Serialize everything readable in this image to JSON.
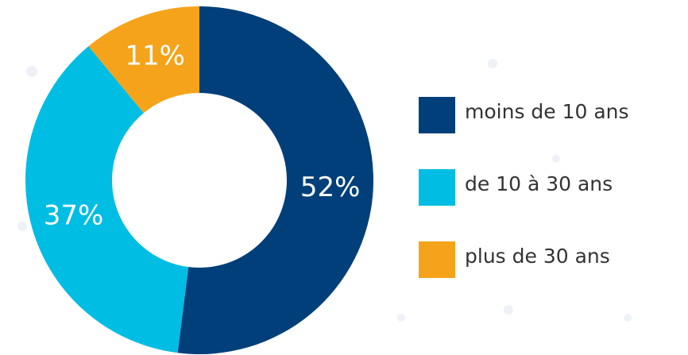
{
  "chart_data": {
    "type": "donut",
    "categories": [
      "moins de 10 ans",
      "de 10 à 30 ans",
      "plus de 30 ans"
    ],
    "values": [
      52,
      37,
      11
    ],
    "value_labels": [
      "52%",
      "37%",
      "11%"
    ],
    "colors": [
      "#003f7a",
      "#00bde3",
      "#f5a31a"
    ],
    "legend": "right"
  }
}
